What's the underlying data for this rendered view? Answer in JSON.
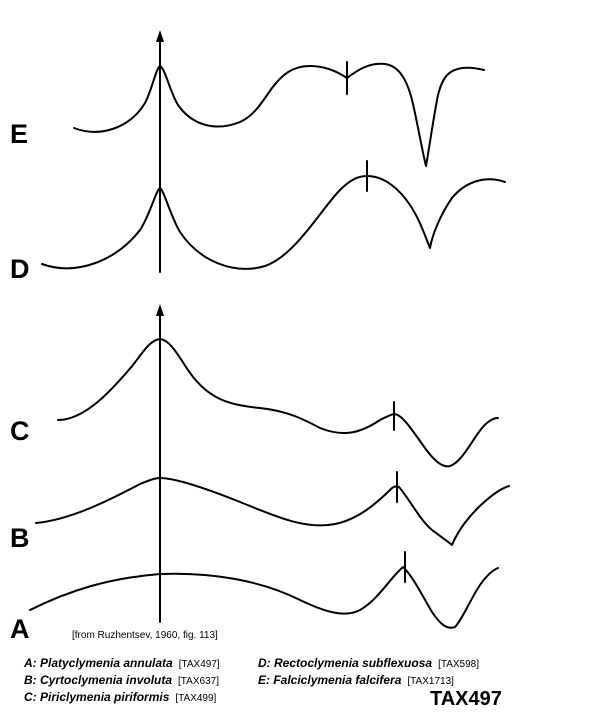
{
  "row_labels": {
    "E": "E",
    "D": "D",
    "C": "C",
    "B": "B",
    "A": "A"
  },
  "citation": "[from Ruzhentsev, 1960, fig. 113]",
  "legend": {
    "A": {
      "text": "A: Platyclymenia annulata",
      "tax": "[TAX497]"
    },
    "B": {
      "text": "B: Cyrtoclymenia involuta",
      "tax": "[TAX637]"
    },
    "C": {
      "text": "C: Piriclymenia piriformis",
      "tax": "[TAX499]"
    },
    "D": {
      "text": "D: Rectoclymenia subflexuosa",
      "tax": "[TAX598]"
    },
    "E": {
      "text": "E: Falciclymenia falcifera",
      "tax": "[TAX1713]"
    }
  },
  "tax_code": "TAX497",
  "colors": {
    "ink": "#000000",
    "paper": "#ffffff"
  }
}
